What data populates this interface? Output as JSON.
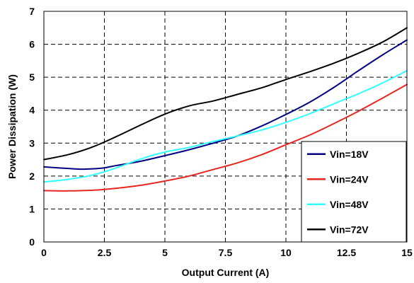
{
  "chart_data": {
    "type": "line",
    "title": "",
    "xlabel": "Output Current (A)",
    "ylabel": "Power Dissipation (W)",
    "xlim": [
      0,
      15
    ],
    "ylim": [
      0,
      7
    ],
    "x_ticks": [
      0,
      2.5,
      5,
      7.5,
      10,
      12.5,
      15
    ],
    "x_tick_labels": [
      "0",
      "2.5",
      "5",
      "7.5",
      "10",
      "12.5",
      "15"
    ],
    "y_ticks": [
      0,
      1,
      2,
      3,
      4,
      5,
      6,
      7
    ],
    "y_tick_labels": [
      "0",
      "1",
      "2",
      "3",
      "4",
      "5",
      "6",
      "7"
    ],
    "grid": true,
    "legend_position": "bottom-right",
    "series": [
      {
        "name": "Vin=18V",
        "color": "#000080",
        "x": [
          0,
          1,
          1.5,
          2,
          2.5,
          3,
          4,
          5,
          6,
          7,
          8,
          9,
          10,
          11,
          12,
          13,
          14,
          15
        ],
        "y": [
          2.28,
          2.23,
          2.21,
          2.22,
          2.25,
          2.32,
          2.45,
          2.62,
          2.8,
          3.0,
          3.22,
          3.52,
          3.87,
          4.25,
          4.7,
          5.2,
          5.68,
          6.13
        ]
      },
      {
        "name": "Vin=24V",
        "color": "#e8251f",
        "x": [
          0,
          1,
          2,
          3,
          4,
          5,
          6,
          7,
          8,
          9,
          10,
          11,
          12,
          13,
          14,
          15
        ],
        "y": [
          1.56,
          1.55,
          1.57,
          1.63,
          1.72,
          1.85,
          2.0,
          2.2,
          2.4,
          2.65,
          2.95,
          3.25,
          3.6,
          3.97,
          4.37,
          4.78
        ]
      },
      {
        "name": "Vin=48V",
        "color": "#33ffff",
        "x": [
          0,
          1,
          2,
          3,
          4,
          5,
          6,
          7,
          8,
          9,
          10,
          11,
          12,
          13,
          14,
          15
        ],
        "y": [
          1.82,
          1.9,
          2.03,
          2.25,
          2.52,
          2.73,
          2.87,
          3.05,
          3.22,
          3.4,
          3.63,
          3.9,
          4.2,
          4.5,
          4.83,
          5.2
        ]
      },
      {
        "name": "Vin=72V",
        "color": "#000000",
        "x": [
          0,
          1,
          2,
          3,
          4,
          5,
          6,
          7,
          8,
          9,
          10,
          11,
          12,
          13,
          14,
          15
        ],
        "y": [
          2.5,
          2.65,
          2.88,
          3.2,
          3.55,
          3.88,
          4.13,
          4.28,
          4.48,
          4.68,
          4.93,
          5.17,
          5.43,
          5.73,
          6.07,
          6.5
        ]
      }
    ]
  }
}
